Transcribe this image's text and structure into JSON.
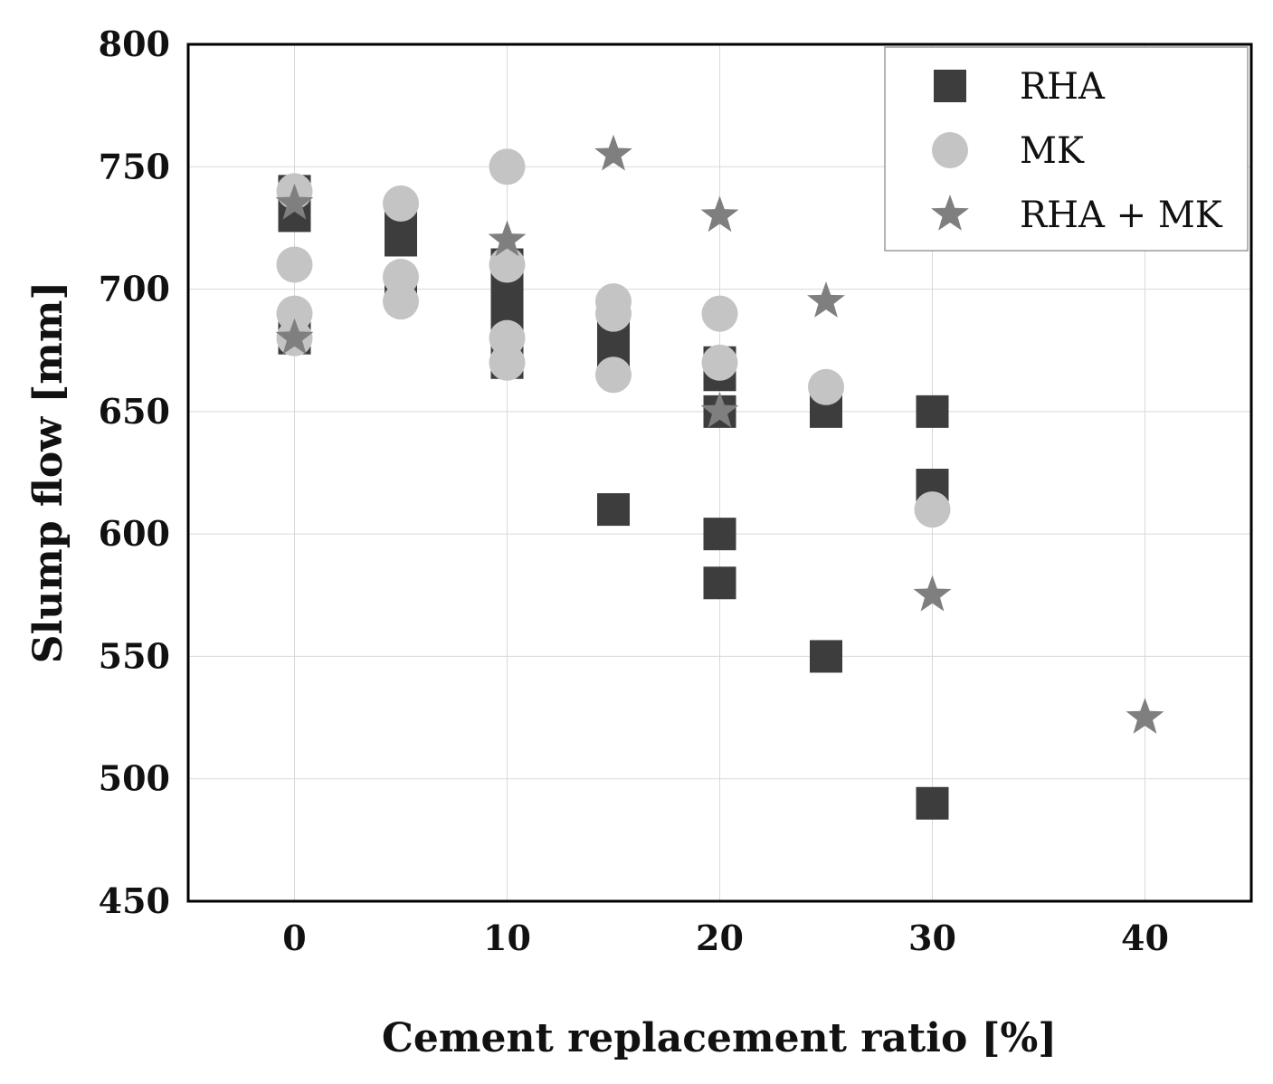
{
  "chart_data": {
    "type": "scatter",
    "title": "",
    "xlabel": "Cement replacement ratio [%]",
    "ylabel": "Slump flow [mm]",
    "xlim": [
      -5,
      45
    ],
    "ylim": [
      450,
      800
    ],
    "xticks": [
      0,
      10,
      20,
      30,
      40
    ],
    "yticks": [
      450,
      500,
      550,
      600,
      650,
      700,
      750,
      800
    ],
    "grid": true,
    "legend_position": "top-right",
    "series": [
      {
        "name": "RHA",
        "marker": "square",
        "color": "#3d3d3d",
        "points": [
          {
            "x": 0,
            "y": 740
          },
          {
            "x": 0,
            "y": 730
          },
          {
            "x": 0,
            "y": 680
          },
          {
            "x": 5,
            "y": 725
          },
          {
            "x": 5,
            "y": 720
          },
          {
            "x": 5,
            "y": 700
          },
          {
            "x": 10,
            "y": 710
          },
          {
            "x": 10,
            "y": 700
          },
          {
            "x": 10,
            "y": 690
          },
          {
            "x": 10,
            "y": 680
          },
          {
            "x": 10,
            "y": 670
          },
          {
            "x": 15,
            "y": 690
          },
          {
            "x": 15,
            "y": 680
          },
          {
            "x": 15,
            "y": 670
          },
          {
            "x": 15,
            "y": 610
          },
          {
            "x": 20,
            "y": 670
          },
          {
            "x": 20,
            "y": 665
          },
          {
            "x": 20,
            "y": 650
          },
          {
            "x": 20,
            "y": 600
          },
          {
            "x": 20,
            "y": 580
          },
          {
            "x": 25,
            "y": 650
          },
          {
            "x": 25,
            "y": 550
          },
          {
            "x": 30,
            "y": 650
          },
          {
            "x": 30,
            "y": 620
          },
          {
            "x": 30,
            "y": 490
          }
        ]
      },
      {
        "name": "MK",
        "marker": "circle",
        "color": "#c4c4c4",
        "points": [
          {
            "x": 0,
            "y": 740
          },
          {
            "x": 0,
            "y": 710
          },
          {
            "x": 0,
            "y": 690
          },
          {
            "x": 0,
            "y": 680
          },
          {
            "x": 5,
            "y": 735
          },
          {
            "x": 5,
            "y": 705
          },
          {
            "x": 5,
            "y": 695
          },
          {
            "x": 10,
            "y": 750
          },
          {
            "x": 10,
            "y": 710
          },
          {
            "x": 10,
            "y": 680
          },
          {
            "x": 10,
            "y": 670
          },
          {
            "x": 15,
            "y": 695
          },
          {
            "x": 15,
            "y": 690
          },
          {
            "x": 15,
            "y": 665
          },
          {
            "x": 20,
            "y": 690
          },
          {
            "x": 20,
            "y": 670
          },
          {
            "x": 25,
            "y": 660
          },
          {
            "x": 30,
            "y": 610
          }
        ]
      },
      {
        "name": "RHA + MK",
        "marker": "star",
        "color": "#7f7f7f",
        "points": [
          {
            "x": 0,
            "y": 735
          },
          {
            "x": 0,
            "y": 680
          },
          {
            "x": 10,
            "y": 720
          },
          {
            "x": 15,
            "y": 755
          },
          {
            "x": 20,
            "y": 730
          },
          {
            "x": 20,
            "y": 650
          },
          {
            "x": 25,
            "y": 695
          },
          {
            "x": 30,
            "y": 575
          },
          {
            "x": 40,
            "y": 525
          }
        ]
      }
    ]
  }
}
